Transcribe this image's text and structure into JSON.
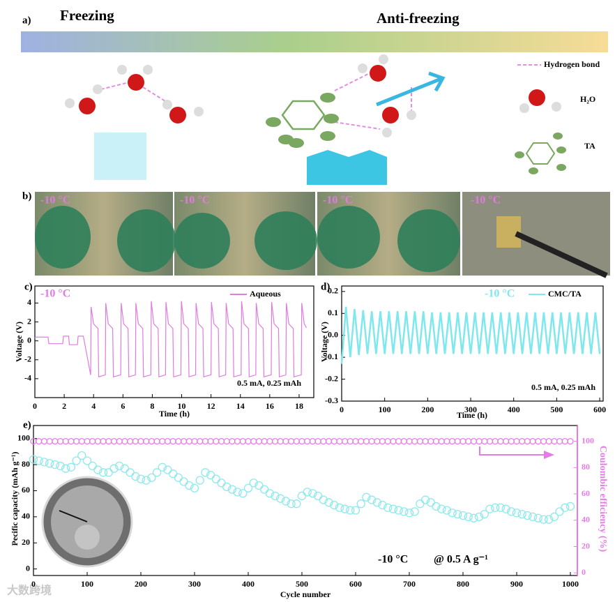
{
  "diagram": {
    "panel_label": "a)",
    "left_title": "Freezing",
    "right_title": "Anti-freezing",
    "legend": [
      "Hydrogen bond",
      "H₂O",
      "TA"
    ]
  },
  "photos": {
    "panel_label": "b)",
    "labels": [
      "-10 °C",
      "-10 °C",
      "-10 °C",
      "-10 °C"
    ]
  },
  "watermark": "大数跨境",
  "chart_data": [
    {
      "type": "line",
      "panel_label": "c)",
      "xlabel": "Time (h)",
      "ylabel": "Voltage (V)",
      "annotations": [
        "-10 °C",
        "0.5 mA, 0.25 mAh"
      ],
      "xlim": [
        0,
        19
      ],
      "ylim": [
        -6,
        5.8
      ],
      "xticks": [
        0,
        2,
        4,
        6,
        8,
        10,
        12,
        14,
        16,
        18
      ],
      "yticks": [
        -4,
        -2,
        0,
        2,
        4
      ],
      "x": [
        0,
        0.05,
        0.9,
        0.95,
        1.9,
        1.95,
        2.3,
        2.35,
        2.9,
        2.95,
        3.3,
        3.4,
        3.8,
        3.83,
        4.0,
        4.3,
        4.35,
        4.8,
        4.83,
        5.0,
        5.3,
        5.35,
        5.85,
        5.88,
        6.05,
        6.35,
        6.4,
        6.85,
        6.88,
        7.05,
        7.35,
        7.4,
        7.9,
        7.93,
        8.1,
        8.4,
        8.45,
        8.9,
        8.93,
        9.1,
        9.4,
        9.45,
        9.95,
        9.98,
        10.15,
        10.45,
        10.5,
        10.95,
        10.98,
        11.15,
        11.45,
        11.5,
        12.0,
        12.03,
        12.2,
        12.5,
        12.55,
        13.0,
        13.03,
        13.2,
        13.5,
        13.55,
        14.05,
        14.08,
        14.25,
        14.55,
        14.6,
        15.05,
        15.08,
        15.25,
        15.55,
        15.6,
        16.1,
        16.13,
        16.3,
        16.6,
        16.65,
        17.1,
        17.13,
        17.3,
        17.6,
        17.65,
        18.15,
        18.18,
        18.35,
        18.5
      ],
      "series": [
        {
          "name": "Aqueous",
          "color": "#e07be0",
          "values": [
            0.3,
            0.4,
            0.4,
            -0.3,
            -0.3,
            0.5,
            0.5,
            -0.4,
            -0.4,
            0.5,
            0.5,
            -0.3,
            -3.6,
            3.6,
            1.8,
            1.3,
            -3.8,
            -3.6,
            4.0,
            1.8,
            1.3,
            -3.8,
            -3.6,
            4.0,
            1.8,
            1.3,
            -3.8,
            -3.6,
            4.0,
            1.8,
            1.3,
            -3.8,
            -3.6,
            4.2,
            1.8,
            1.3,
            -3.8,
            -3.6,
            4.1,
            1.8,
            1.3,
            -3.8,
            -3.6,
            4.2,
            1.8,
            1.3,
            -3.8,
            -3.6,
            4.0,
            1.8,
            1.3,
            -3.8,
            -3.6,
            4.1,
            1.8,
            1.3,
            -3.8,
            -3.6,
            4.0,
            1.8,
            1.3,
            -3.8,
            -3.6,
            4.2,
            1.8,
            1.3,
            -3.8,
            -3.6,
            4.0,
            1.8,
            1.3,
            -3.8,
            -3.6,
            4.1,
            1.8,
            1.3,
            -3.8,
            -3.6,
            4.0,
            1.8,
            1.3,
            -3.8,
            -3.6,
            4.0,
            1.8,
            1.4
          ]
        }
      ]
    },
    {
      "type": "line",
      "panel_label": "d)",
      "xlabel": "Time (h)",
      "ylabel": "Voltage (V)",
      "annotations": [
        "-10 °C",
        "0.5 mA, 0.25 mAh"
      ],
      "xlim": [
        0,
        608
      ],
      "ylim": [
        -0.3,
        0.225
      ],
      "xticks": [
        0,
        100,
        200,
        300,
        400,
        500,
        600
      ],
      "yticks": [
        -0.3,
        -0.2,
        -0.1,
        {
          "value": 0,
          "label": "0.0"
        },
        0.1,
        0.2
      ],
      "x": [
        0,
        10,
        20,
        30,
        40,
        50,
        60,
        70,
        80,
        90,
        100,
        110,
        120,
        130,
        140,
        150,
        160,
        170,
        180,
        190,
        200,
        210,
        220,
        230,
        240,
        250,
        260,
        270,
        280,
        290,
        300,
        310,
        320,
        330,
        340,
        350,
        360,
        370,
        380,
        390,
        400,
        410,
        420,
        430,
        440,
        450,
        460,
        470,
        480,
        490,
        500,
        510,
        520,
        530,
        540,
        550,
        560,
        570,
        580,
        590,
        600
      ],
      "series": [
        {
          "name": "CMC/TA",
          "color": "#7ee8ee",
          "values": [
            -0.13,
            0.13,
            -0.1,
            0.12,
            -0.09,
            0.115,
            -0.085,
            0.11,
            -0.085,
            0.11,
            -0.085,
            0.11,
            -0.085,
            0.11,
            -0.085,
            0.11,
            -0.085,
            0.11,
            -0.085,
            0.11,
            -0.085,
            0.105,
            -0.085,
            0.105,
            -0.085,
            0.105,
            -0.085,
            0.105,
            -0.085,
            0.105,
            -0.085,
            0.105,
            -0.085,
            0.105,
            -0.085,
            0.105,
            -0.085,
            0.105,
            -0.085,
            0.105,
            -0.085,
            0.105,
            -0.085,
            0.105,
            -0.085,
            0.105,
            -0.085,
            0.105,
            -0.085,
            0.105,
            -0.085,
            0.105,
            -0.085,
            0.105,
            -0.085,
            0.105,
            -0.085,
            0.105,
            -0.085,
            0.105,
            -0.085
          ]
        }
      ]
    },
    {
      "type": "scatter",
      "panel_label": "e)",
      "xlabel": "Cycle number",
      "ylabel": "Pecific capacity (mAh g⁻¹)",
      "y2label": "Coulombic efficiency (%)",
      "annotations": [
        "-10 °C",
        "@ 0.5 A g⁻¹"
      ],
      "xlim": [
        0,
        1013
      ],
      "ylim": [
        -5,
        110
      ],
      "y2lim": [
        -2,
        112
      ],
      "xticks": [
        0,
        100,
        200,
        300,
        400,
        500,
        600,
        700,
        800,
        900,
        1000
      ],
      "yticks": [
        0,
        20,
        40,
        60,
        80,
        100
      ],
      "y2ticks": [
        0,
        20,
        40,
        60,
        80,
        100
      ],
      "x": [
        0,
        10,
        20,
        30,
        40,
        50,
        60,
        70,
        80,
        90,
        100,
        110,
        120,
        130,
        140,
        150,
        160,
        170,
        180,
        190,
        200,
        210,
        220,
        230,
        240,
        250,
        260,
        270,
        280,
        290,
        300,
        310,
        320,
        330,
        340,
        350,
        360,
        370,
        380,
        390,
        400,
        410,
        420,
        430,
        440,
        450,
        460,
        470,
        480,
        490,
        500,
        510,
        520,
        530,
        540,
        550,
        560,
        570,
        580,
        590,
        600,
        610,
        620,
        630,
        640,
        650,
        660,
        670,
        680,
        690,
        700,
        710,
        720,
        730,
        740,
        750,
        760,
        770,
        780,
        790,
        800,
        810,
        820,
        830,
        840,
        850,
        860,
        870,
        880,
        890,
        900,
        910,
        920,
        930,
        940,
        950,
        960,
        970,
        980,
        990,
        1000
      ],
      "series": [
        {
          "color": "#8ee9ec",
          "values": [
            84,
            83,
            82,
            81,
            80,
            79,
            77,
            78,
            83,
            87,
            83,
            79,
            76,
            74,
            74,
            77,
            79,
            77,
            74,
            71,
            69,
            68,
            70,
            74,
            78,
            76,
            73,
            70,
            67,
            64,
            62,
            68,
            74,
            72,
            69,
            66,
            63,
            61,
            59,
            58,
            62,
            66,
            64,
            61,
            58,
            56,
            54,
            52,
            50,
            50,
            56,
            59,
            58,
            56,
            53,
            51,
            49,
            47,
            46,
            45,
            45,
            50,
            55,
            53,
            51,
            49,
            47,
            46,
            45,
            44,
            43,
            44,
            50,
            53,
            51,
            48,
            46,
            45,
            43,
            42,
            41,
            40,
            39,
            40,
            42,
            46,
            47,
            47,
            46,
            44,
            43,
            42,
            41,
            40,
            39,
            38,
            38,
            40,
            44,
            47,
            48
          ]
        },
        {
          "color": "#e47ce6",
          "axis": "y2",
          "values": [
            100,
            100,
            100,
            100,
            100,
            100,
            100,
            100,
            100,
            100,
            100,
            100,
            100,
            100,
            100,
            100,
            100,
            100,
            100,
            100,
            100,
            100,
            100,
            100,
            100,
            100,
            100,
            100,
            100,
            100,
            100,
            100,
            100,
            100,
            100,
            100,
            100,
            100,
            100,
            100,
            100,
            100,
            100,
            100,
            100,
            100,
            100,
            100,
            100,
            100,
            100,
            100,
            100,
            100,
            100,
            100,
            100,
            100,
            100,
            100,
            100,
            100,
            100,
            100,
            100,
            100,
            100,
            100,
            100,
            100,
            100,
            100,
            100,
            100,
            100,
            100,
            100,
            100,
            100,
            100,
            100,
            100,
            100,
            100,
            100,
            100,
            100,
            100,
            100,
            100,
            100,
            100,
            100,
            100,
            100,
            100,
            100,
            100,
            100,
            100,
            100
          ]
        }
      ]
    }
  ]
}
